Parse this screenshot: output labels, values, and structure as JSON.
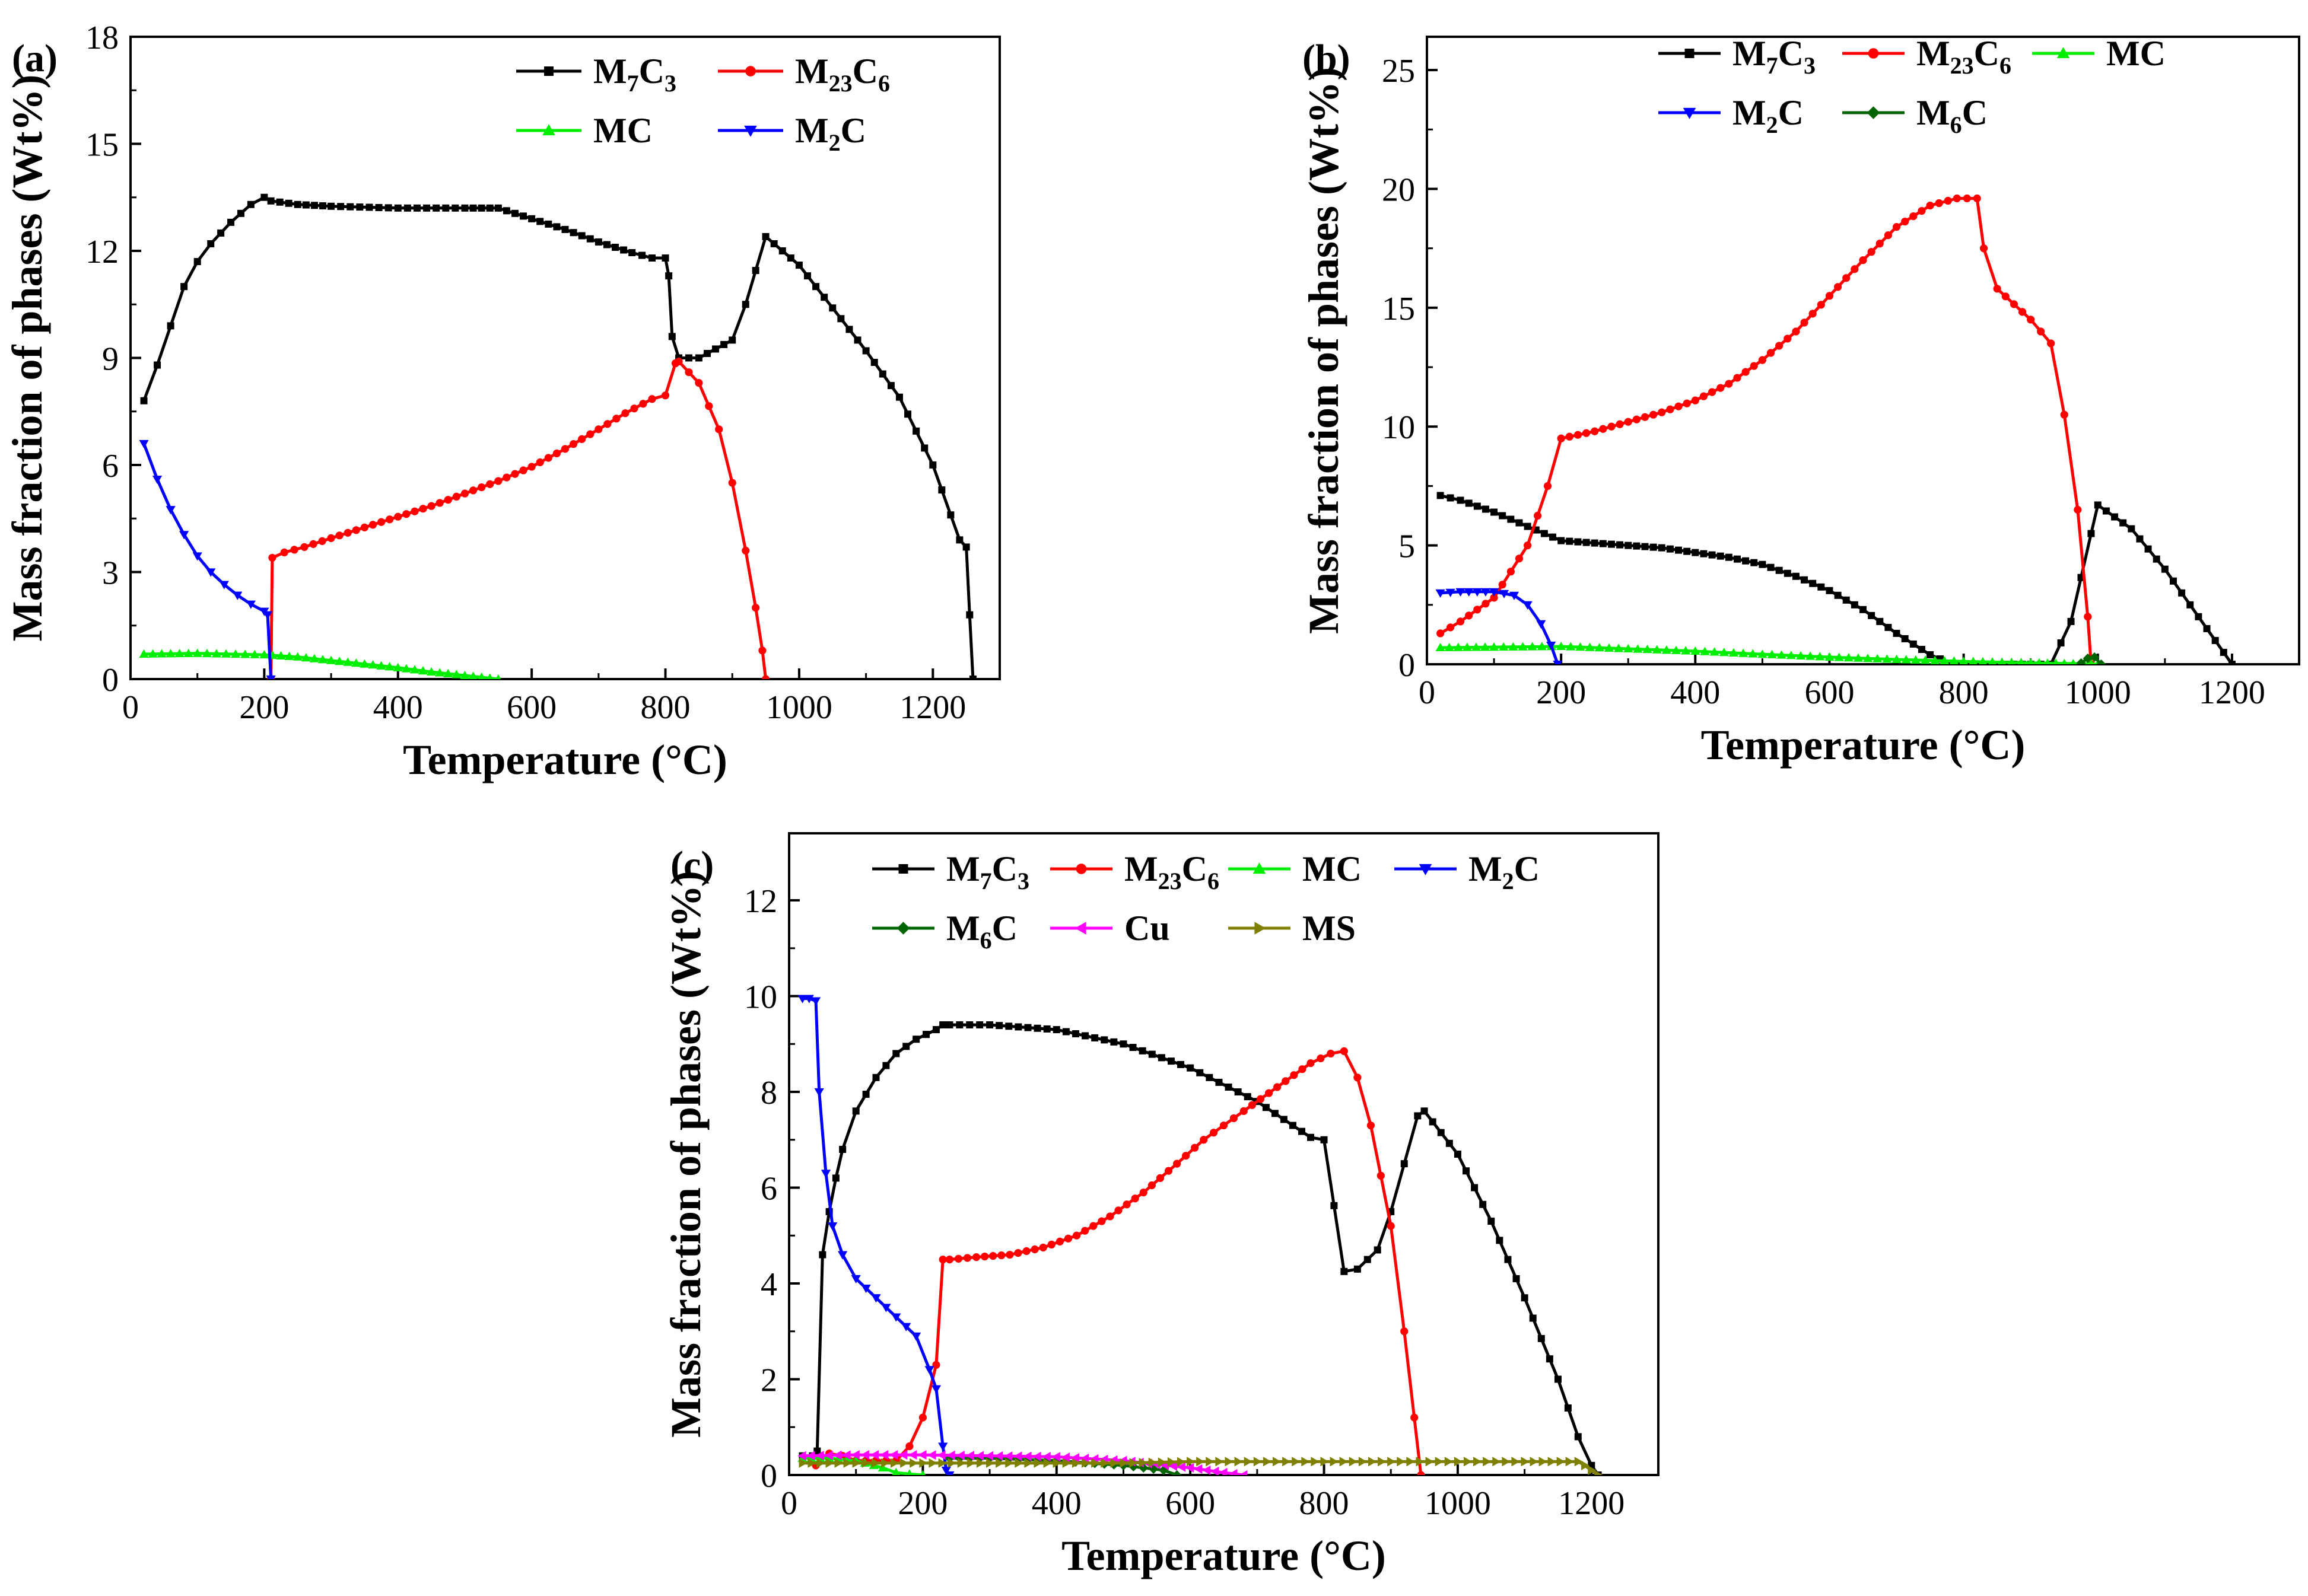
{
  "colors": {
    "M7C3": "#000000",
    "M23C6": "#ff0000",
    "MC": "#00ee00",
    "M2C": "#0000ff",
    "M6C": "#006400",
    "Cu": "#ff00ff",
    "MS": "#808000"
  },
  "chart_data": [
    {
      "panel": "(a)",
      "type": "line",
      "xlabel": "Temperature (°C)",
      "ylabel": "Mass fraction of phases (Wt%)",
      "xlim": [
        0,
        1300
      ],
      "ylim": [
        0,
        18
      ],
      "xticks": [
        0,
        200,
        400,
        600,
        800,
        1000,
        1200
      ],
      "yticks": [
        0,
        3,
        6,
        9,
        12,
        15,
        18
      ],
      "legend": [
        {
          "key": "M7C3",
          "base": "M",
          "sub1": "7",
          "mid": "C",
          "sub2": "3",
          "marker": "square"
        },
        {
          "key": "M23C6",
          "base": "M",
          "sub1": "23",
          "mid": "C",
          "sub2": "6",
          "marker": "circle"
        },
        {
          "key": "MC",
          "base": "MC",
          "sub1": "",
          "mid": "",
          "sub2": "",
          "marker": "triangle-up"
        },
        {
          "key": "M2C",
          "base": "M",
          "sub1": "2",
          "mid": "C",
          "sub2": "",
          "marker": "triangle-down"
        }
      ],
      "series": [
        {
          "key": "M7C3",
          "x": [
            20,
            40,
            60,
            80,
            100,
            120,
            150,
            180,
            200,
            210,
            250,
            300,
            400,
            500,
            550,
            600,
            650,
            700,
            750,
            780,
            800,
            805,
            810,
            820,
            850,
            900,
            920,
            950,
            1000,
            1050,
            1100,
            1150,
            1200,
            1240,
            1250,
            1255,
            1260
          ],
          "y": [
            7.8,
            8.8,
            9.9,
            11.0,
            11.7,
            12.2,
            12.8,
            13.3,
            13.5,
            13.4,
            13.3,
            13.25,
            13.2,
            13.2,
            13.2,
            12.9,
            12.6,
            12.25,
            11.95,
            11.8,
            11.8,
            11.3,
            9.6,
            9.0,
            9.0,
            9.5,
            10.5,
            12.4,
            11.6,
            10.4,
            9.2,
            7.9,
            6.0,
            3.9,
            3.7,
            1.8,
            0.0
          ]
        },
        {
          "key": "M23C6",
          "x": [
            210,
            212,
            230,
            260,
            300,
            350,
            400,
            450,
            500,
            550,
            600,
            650,
            700,
            740,
            780,
            800,
            815,
            820,
            850,
            880,
            900,
            920,
            935,
            945,
            950
          ],
          "y": [
            0.0,
            3.4,
            3.55,
            3.7,
            3.95,
            4.25,
            4.55,
            4.85,
            5.2,
            5.55,
            5.95,
            6.45,
            7.0,
            7.45,
            7.85,
            7.95,
            8.85,
            8.9,
            8.3,
            7.0,
            5.5,
            3.6,
            2.0,
            0.8,
            0.0
          ]
        },
        {
          "key": "MC",
          "x": [
            20,
            100,
            200,
            250,
            300,
            350,
            400,
            450,
            500,
            550
          ],
          "y": [
            0.7,
            0.72,
            0.68,
            0.62,
            0.52,
            0.42,
            0.32,
            0.2,
            0.1,
            0.0
          ]
        },
        {
          "key": "M2C",
          "x": [
            20,
            40,
            60,
            80,
            100,
            120,
            140,
            160,
            180,
            200,
            205,
            210
          ],
          "y": [
            6.6,
            5.6,
            4.75,
            4.05,
            3.45,
            3.0,
            2.65,
            2.35,
            2.1,
            1.9,
            1.8,
            0.0
          ]
        }
      ]
    },
    {
      "panel": "(b)",
      "type": "line",
      "xlabel": "Temperature (°C)",
      "ylabel": "Mass fraction of phases (Wt%)",
      "xlim": [
        0,
        1300
      ],
      "ylim": [
        0,
        26.4
      ],
      "xticks": [
        0,
        200,
        400,
        600,
        800,
        1000,
        1200
      ],
      "yticks": [
        0,
        5,
        10,
        15,
        20,
        25
      ],
      "legend": [
        {
          "key": "M7C3",
          "base": "M",
          "sub1": "7",
          "mid": "C",
          "sub2": "3",
          "marker": "square"
        },
        {
          "key": "M23C6",
          "base": "M",
          "sub1": "23",
          "mid": "C",
          "sub2": "6",
          "marker": "circle"
        },
        {
          "key": "MC",
          "base": "MC",
          "sub1": "",
          "mid": "",
          "sub2": "",
          "marker": "triangle-up"
        },
        {
          "key": "M2C",
          "base": "M",
          "sub1": "2",
          "mid": "C",
          "sub2": "",
          "marker": "triangle-down"
        },
        {
          "key": "M6C",
          "base": "M",
          "sub1": "6",
          "mid": "C",
          "sub2": "",
          "marker": "diamond"
        }
      ],
      "series": [
        {
          "key": "M7C3",
          "x": [
            20,
            50,
            100,
            150,
            200,
            250,
            300,
            350,
            400,
            450,
            500,
            550,
            600,
            650,
            700,
            750,
            780,
            800,
            850,
            900,
            930,
            960,
            990,
            1000,
            1050,
            1100,
            1150,
            1200
          ],
          "y": [
            7.1,
            6.9,
            6.4,
            5.8,
            5.2,
            5.1,
            5.0,
            4.9,
            4.7,
            4.5,
            4.2,
            3.7,
            3.1,
            2.3,
            1.3,
            0.4,
            0.05,
            0.0,
            0.0,
            0.0,
            0.0,
            1.8,
            5.5,
            6.7,
            5.7,
            4.0,
            2.0,
            0.0
          ]
        },
        {
          "key": "M23C6",
          "x": [
            20,
            50,
            100,
            150,
            180,
            200,
            250,
            300,
            350,
            400,
            450,
            500,
            550,
            600,
            650,
            700,
            750,
            790,
            820,
            830,
            850,
            900,
            930,
            950,
            970,
            985,
            990
          ],
          "y": [
            1.3,
            1.8,
            2.8,
            5.0,
            7.5,
            9.5,
            9.8,
            10.2,
            10.6,
            11.1,
            11.8,
            12.8,
            14.0,
            15.5,
            17.0,
            18.4,
            19.3,
            19.6,
            19.6,
            17.5,
            15.8,
            14.5,
            13.5,
            10.5,
            6.5,
            2.0,
            0.0
          ]
        },
        {
          "key": "MC",
          "x": [
            20,
            100,
            200,
            300,
            400,
            500,
            600,
            700,
            800,
            900,
            950,
            990,
            1000
          ],
          "y": [
            0.7,
            0.72,
            0.75,
            0.65,
            0.55,
            0.42,
            0.3,
            0.2,
            0.12,
            0.06,
            0.03,
            0.02,
            0.0
          ]
        },
        {
          "key": "M2C",
          "x": [
            20,
            50,
            100,
            130,
            150,
            170,
            185,
            195
          ],
          "y": [
            3.0,
            3.05,
            3.05,
            2.9,
            2.5,
            1.7,
            0.8,
            0.0
          ]
        },
        {
          "key": "M6C",
          "x": [
            975,
            985,
            995,
            1005
          ],
          "y": [
            0.05,
            0.25,
            0.3,
            0.0
          ]
        }
      ]
    },
    {
      "panel": "(c)",
      "type": "line",
      "xlabel": "Temperature (°C)",
      "ylabel": "Mass fraction of phases (Wt%)",
      "xlim": [
        0,
        1300
      ],
      "ylim": [
        0,
        13.4
      ],
      "xticks": [
        0,
        200,
        400,
        600,
        800,
        1000,
        1200
      ],
      "yticks": [
        0,
        2,
        4,
        6,
        8,
        10,
        12
      ],
      "legend": [
        {
          "key": "M7C3",
          "base": "M",
          "sub1": "7",
          "mid": "C",
          "sub2": "3",
          "marker": "square"
        },
        {
          "key": "M23C6",
          "base": "M",
          "sub1": "23",
          "mid": "C",
          "sub2": "6",
          "marker": "circle"
        },
        {
          "key": "MC",
          "base": "MC",
          "sub1": "",
          "mid": "",
          "sub2": "",
          "marker": "triangle-up"
        },
        {
          "key": "M2C",
          "base": "M",
          "sub1": "2",
          "mid": "C",
          "sub2": "",
          "marker": "triangle-down"
        },
        {
          "key": "M6C",
          "base": "M",
          "sub1": "6",
          "mid": "C",
          "sub2": "",
          "marker": "diamond"
        },
        {
          "key": "Cu",
          "base": "Cu",
          "sub1": "",
          "mid": "",
          "sub2": "",
          "marker": "triangle-left"
        },
        {
          "key": "MS",
          "base": "MS",
          "sub1": "",
          "mid": "",
          "sub2": "",
          "marker": "triangle-right"
        }
      ],
      "series": [
        {
          "key": "M7C3",
          "x": [
            20,
            35,
            42,
            50,
            60,
            70,
            80,
            100,
            130,
            160,
            190,
            220,
            230,
            240,
            300,
            400,
            500,
            600,
            700,
            780,
            800,
            830,
            850,
            880,
            900,
            920,
            940,
            950,
            1000,
            1050,
            1100,
            1150,
            1180,
            1200,
            1210
          ],
          "y": [
            0.4,
            0.4,
            0.5,
            4.6,
            5.5,
            6.2,
            6.8,
            7.6,
            8.3,
            8.8,
            9.1,
            9.3,
            9.4,
            9.4,
            9.4,
            9.3,
            9.0,
            8.5,
            7.8,
            7.05,
            7.0,
            4.25,
            4.3,
            4.7,
            5.5,
            6.5,
            7.5,
            7.6,
            6.7,
            5.3,
            3.7,
            2.0,
            0.8,
            0.2,
            0.0
          ]
        },
        {
          "key": "M23C6",
          "x": [
            40,
            60,
            80,
            100,
            160,
            180,
            200,
            220,
            230,
            240,
            280,
            330,
            380,
            430,
            480,
            530,
            580,
            620,
            680,
            730,
            780,
            810,
            830,
            850,
            870,
            900,
            920,
            935,
            945
          ],
          "y": [
            0.2,
            0.45,
            0.4,
            0.3,
            0.3,
            0.6,
            1.2,
            2.3,
            4.5,
            4.5,
            4.55,
            4.6,
            4.75,
            5.0,
            5.4,
            5.9,
            6.5,
            7.0,
            7.6,
            8.1,
            8.6,
            8.8,
            8.85,
            8.3,
            7.3,
            5.2,
            3.0,
            1.2,
            0.0
          ]
        },
        {
          "key": "MC",
          "x": [
            20,
            60,
            100,
            140,
            160,
            180,
            200
          ],
          "y": [
            0.35,
            0.35,
            0.3,
            0.15,
            0.05,
            0.02,
            0.0
          ]
        },
        {
          "key": "M2C",
          "x": [
            20,
            30,
            40,
            45,
            55,
            65,
            80,
            100,
            130,
            160,
            190,
            210,
            220,
            230,
            235,
            240
          ],
          "y": [
            9.95,
            9.95,
            9.9,
            8.0,
            6.3,
            5.2,
            4.6,
            4.1,
            3.7,
            3.3,
            2.9,
            2.2,
            1.8,
            0.6,
            0.1,
            0.0
          ]
        },
        {
          "key": "M6C",
          "x": [
            240,
            300,
            400,
            500,
            560,
            580
          ],
          "y": [
            0.35,
            0.35,
            0.3,
            0.2,
            0.1,
            0.0
          ]
        },
        {
          "key": "Cu",
          "x": [
            20,
            100,
            200,
            300,
            400,
            500,
            550,
            600,
            650,
            680
          ],
          "y": [
            0.4,
            0.42,
            0.42,
            0.4,
            0.38,
            0.3,
            0.22,
            0.15,
            0.05,
            0.0
          ]
        },
        {
          "key": "MS",
          "x": [
            20,
            100,
            200,
            300,
            400,
            500,
            600,
            700,
            800,
            900,
            1000,
            1100,
            1180,
            1190,
            1200,
            1210
          ],
          "y": [
            0.25,
            0.25,
            0.25,
            0.25,
            0.25,
            0.25,
            0.28,
            0.28,
            0.28,
            0.28,
            0.28,
            0.28,
            0.28,
            0.2,
            0.1,
            0.0
          ]
        }
      ]
    }
  ]
}
